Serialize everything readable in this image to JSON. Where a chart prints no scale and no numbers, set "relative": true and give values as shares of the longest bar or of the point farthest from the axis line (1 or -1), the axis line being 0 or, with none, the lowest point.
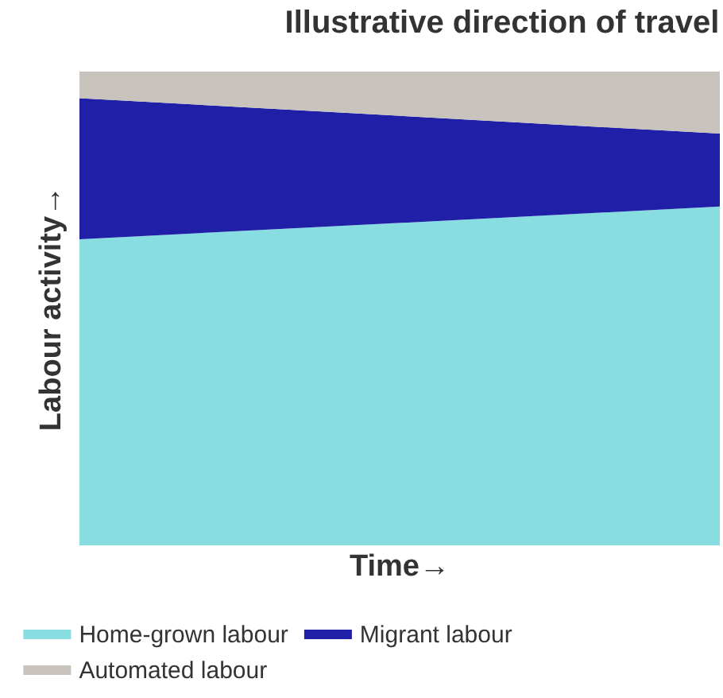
{
  "chart_data": {
    "type": "area",
    "title": "Illustrative direction of travel",
    "xlabel": "Time→",
    "ylabel": "Labour activity→",
    "categories": [
      null,
      null
    ],
    "stacked": true,
    "relative": true,
    "legend": "bottom",
    "series": [
      {
        "name": "Home-grown labour",
        "color": "#87dde0",
        "values": [
          0.646,
          0.715
        ]
      },
      {
        "name": "Migrant labour",
        "color": "#1f1fa8",
        "values": [
          0.298,
          0.154
        ]
      },
      {
        "name": "Automated labour",
        "color": "#c9c3bd",
        "values": [
          0.056,
          0.131
        ]
      }
    ]
  }
}
